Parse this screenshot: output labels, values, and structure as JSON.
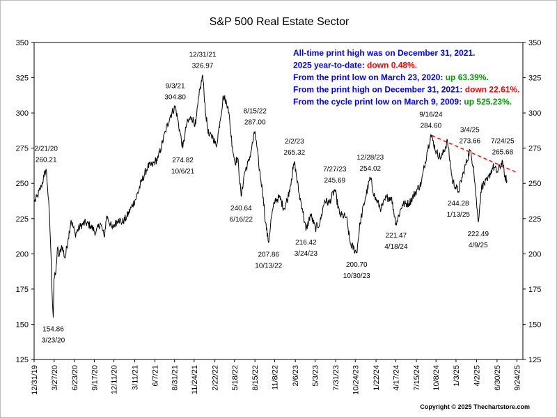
{
  "chart_data": {
    "type": "line",
    "title": "S&P 500 Real Estate Sector",
    "xlabel": "",
    "ylabel": "",
    "ylim": [
      125,
      350
    ],
    "xlim": [
      "2019-12-31",
      "2025-10-20"
    ],
    "grid": false,
    "y_ticks": [
      125,
      150,
      175,
      200,
      225,
      250,
      275,
      300,
      325,
      350
    ],
    "x_ticks": [
      {
        "date": "2019-12-31",
        "label": "12/31/19"
      },
      {
        "date": "2020-03-27",
        "label": "3/27/20"
      },
      {
        "date": "2020-06-23",
        "label": "6/23/20"
      },
      {
        "date": "2020-09-17",
        "label": "9/17/20"
      },
      {
        "date": "2020-12-11",
        "label": "12/11/20"
      },
      {
        "date": "2021-03-11",
        "label": "3/11/21"
      },
      {
        "date": "2021-06-07",
        "label": "6/7/21"
      },
      {
        "date": "2021-08-31",
        "label": "8/31/21"
      },
      {
        "date": "2021-11-24",
        "label": "11/24/21"
      },
      {
        "date": "2022-02-22",
        "label": "2/22/22"
      },
      {
        "date": "2022-05-18",
        "label": "5/18/22"
      },
      {
        "date": "2022-08-15",
        "label": "8/15/22"
      },
      {
        "date": "2022-11-08",
        "label": "11/8/22"
      },
      {
        "date": "2023-02-06",
        "label": "2/6/23"
      },
      {
        "date": "2023-05-03",
        "label": "5/3/23"
      },
      {
        "date": "2023-07-31",
        "label": "7/31/23"
      },
      {
        "date": "2023-10-24",
        "label": "10/24/23"
      },
      {
        "date": "2024-01-22",
        "label": "1/22/24"
      },
      {
        "date": "2024-04-17",
        "label": "4/17/24"
      },
      {
        "date": "2024-07-15",
        "label": "7/15/24"
      },
      {
        "date": "2024-10-08",
        "label": "10/8/24"
      },
      {
        "date": "2025-01-03",
        "label": "1/3/25"
      },
      {
        "date": "2025-04-02",
        "label": "4/2/25"
      },
      {
        "date": "2025-06-30",
        "label": "6/30/25"
      },
      {
        "date": "2025-09-24",
        "label": "9/24/25"
      }
    ],
    "series": [
      {
        "color": "#000000",
        "points": [
          [
            "2020-01-02",
            237
          ],
          [
            "2020-01-15",
            241
          ],
          [
            "2020-01-31",
            248
          ],
          [
            "2020-02-12",
            255
          ],
          [
            "2020-02-21",
            260.21
          ],
          [
            "2020-02-27",
            248
          ],
          [
            "2020-03-05",
            232
          ],
          [
            "2020-03-12",
            205
          ],
          [
            "2020-03-18",
            172
          ],
          [
            "2020-03-23",
            154.86
          ],
          [
            "2020-03-26",
            182
          ],
          [
            "2020-04-03",
            186
          ],
          [
            "2020-04-10",
            204
          ],
          [
            "2020-04-17",
            198
          ],
          [
            "2020-04-29",
            206
          ],
          [
            "2020-05-13",
            197
          ],
          [
            "2020-05-27",
            211
          ],
          [
            "2020-06-08",
            224
          ],
          [
            "2020-06-26",
            214
          ],
          [
            "2020-07-20",
            220
          ],
          [
            "2020-08-10",
            222
          ],
          [
            "2020-08-31",
            220
          ],
          [
            "2020-09-24",
            215
          ],
          [
            "2020-10-13",
            222
          ],
          [
            "2020-10-30",
            212
          ],
          [
            "2020-11-10",
            227
          ],
          [
            "2020-12-04",
            218
          ],
          [
            "2020-12-31",
            225
          ],
          [
            "2021-01-15",
            222
          ],
          [
            "2021-02-04",
            226
          ],
          [
            "2021-02-25",
            233
          ],
          [
            "2021-03-18",
            240
          ],
          [
            "2021-04-09",
            251
          ],
          [
            "2021-05-07",
            262
          ],
          [
            "2021-05-26",
            263
          ],
          [
            "2021-06-21",
            268
          ],
          [
            "2021-07-23",
            287
          ],
          [
            "2021-08-13",
            298
          ],
          [
            "2021-09-03",
            304.8
          ],
          [
            "2021-09-22",
            288
          ],
          [
            "2021-10-06",
            274.82
          ],
          [
            "2021-10-22",
            292
          ],
          [
            "2021-11-12",
            297
          ],
          [
            "2021-12-01",
            292
          ],
          [
            "2021-12-15",
            312
          ],
          [
            "2021-12-31",
            326.97
          ],
          [
            "2022-01-14",
            298
          ],
          [
            "2022-01-27",
            284
          ],
          [
            "2022-02-14",
            283
          ],
          [
            "2022-02-28",
            276
          ],
          [
            "2022-03-16",
            294
          ],
          [
            "2022-03-31",
            312
          ],
          [
            "2022-04-20",
            305
          ],
          [
            "2022-05-09",
            276
          ],
          [
            "2022-05-20",
            265
          ],
          [
            "2022-06-01",
            268
          ],
          [
            "2022-06-16",
            240.64
          ],
          [
            "2022-07-01",
            258
          ],
          [
            "2022-07-20",
            266
          ],
          [
            "2022-08-15",
            287
          ],
          [
            "2022-08-31",
            264
          ],
          [
            "2022-09-20",
            240
          ],
          [
            "2022-09-30",
            222
          ],
          [
            "2022-10-13",
            207.86
          ],
          [
            "2022-10-25",
            226
          ],
          [
            "2022-11-10",
            238
          ],
          [
            "2022-11-30",
            240
          ],
          [
            "2022-12-19",
            232
          ],
          [
            "2023-01-05",
            240
          ],
          [
            "2023-01-20",
            253
          ],
          [
            "2023-02-02",
            265.32
          ],
          [
            "2023-02-22",
            243
          ],
          [
            "2023-03-09",
            232
          ],
          [
            "2023-03-24",
            216.42
          ],
          [
            "2023-04-13",
            228
          ],
          [
            "2023-05-04",
            218
          ],
          [
            "2023-05-24",
            222
          ],
          [
            "2023-06-13",
            238
          ],
          [
            "2023-07-03",
            236
          ],
          [
            "2023-07-27",
            245.69
          ],
          [
            "2023-08-17",
            228
          ],
          [
            "2023-09-15",
            226
          ],
          [
            "2023-10-03",
            207
          ],
          [
            "2023-10-30",
            200.7
          ],
          [
            "2023-11-14",
            222
          ],
          [
            "2023-12-07",
            240
          ],
          [
            "2023-12-28",
            254.02
          ],
          [
            "2024-01-17",
            240
          ],
          [
            "2024-02-13",
            232
          ],
          [
            "2024-03-07",
            240
          ],
          [
            "2024-03-28",
            240
          ],
          [
            "2024-04-18",
            221.47
          ],
          [
            "2024-05-15",
            235
          ],
          [
            "2024-06-14",
            236
          ],
          [
            "2024-07-16",
            245
          ],
          [
            "2024-08-05",
            250
          ],
          [
            "2024-08-30",
            272
          ],
          [
            "2024-09-16",
            284.6
          ],
          [
            "2024-10-10",
            272
          ],
          [
            "2024-10-31",
            268
          ],
          [
            "2024-11-27",
            280
          ],
          [
            "2024-12-18",
            252
          ],
          [
            "2025-01-13",
            244.28
          ],
          [
            "2025-02-05",
            258
          ],
          [
            "2025-03-04",
            273.66
          ],
          [
            "2025-03-20",
            262
          ],
          [
            "2025-04-09",
            222.49
          ],
          [
            "2025-04-24",
            248
          ],
          [
            "2025-05-20",
            252
          ],
          [
            "2025-06-12",
            262
          ],
          [
            "2025-07-01",
            258
          ],
          [
            "2025-07-24",
            265.68
          ],
          [
            "2025-08-01",
            255
          ],
          [
            "2025-08-12",
            252
          ]
        ]
      }
    ],
    "trendline": {
      "color": "#ff0000",
      "style": "dashed",
      "points": [
        [
          "2024-09-20",
          284
        ],
        [
          "2025-09-20",
          258
        ]
      ]
    },
    "annotations": [
      {
        "date": "2020-02-21",
        "value": 260.21,
        "date_label": "2/21/20",
        "value_label": "260.21",
        "position": "above"
      },
      {
        "date": "2020-03-23",
        "value": 154.86,
        "date_label": "3/23/20",
        "value_label": "154.86",
        "position": "below"
      },
      {
        "date": "2021-09-03",
        "value": 304.8,
        "date_label": "9/3/21",
        "value_label": "304.80",
        "position": "above"
      },
      {
        "date": "2021-10-06",
        "value": 274.82,
        "date_label": "10/6/21",
        "value_label": "274.82",
        "position": "below"
      },
      {
        "date": "2021-12-31",
        "value": 326.97,
        "date_label": "12/31/21",
        "value_label": "326.97",
        "position": "above"
      },
      {
        "date": "2022-06-16",
        "value": 240.64,
        "date_label": "6/16/22",
        "value_label": "240.64",
        "position": "below"
      },
      {
        "date": "2022-08-15",
        "value": 287.0,
        "date_label": "8/15/22",
        "value_label": "287.00",
        "position": "above"
      },
      {
        "date": "2022-10-13",
        "value": 207.86,
        "date_label": "10/13/22",
        "value_label": "207.86",
        "position": "below"
      },
      {
        "date": "2023-02-02",
        "value": 265.32,
        "date_label": "2/2/23",
        "value_label": "265.32",
        "position": "above"
      },
      {
        "date": "2023-03-24",
        "value": 216.42,
        "date_label": "3/24/23",
        "value_label": "216.42",
        "position": "below"
      },
      {
        "date": "2023-07-27",
        "value": 245.69,
        "date_label": "7/27/23",
        "value_label": "245.69",
        "position": "above"
      },
      {
        "date": "2023-10-30",
        "value": 200.7,
        "date_label": "10/30/23",
        "value_label": "200.70",
        "position": "below"
      },
      {
        "date": "2023-12-28",
        "value": 254.02,
        "date_label": "12/28/23",
        "value_label": "254.02",
        "position": "above"
      },
      {
        "date": "2024-04-18",
        "value": 221.47,
        "date_label": "4/18/24",
        "value_label": "221.47",
        "position": "below"
      },
      {
        "date": "2024-09-16",
        "value": 284.6,
        "date_label": "9/16/24",
        "value_label": "284.60",
        "position": "above"
      },
      {
        "date": "2025-01-13",
        "value": 244.28,
        "date_label": "1/13/25",
        "value_label": "244.28",
        "position": "below"
      },
      {
        "date": "2025-03-04",
        "value": 273.66,
        "date_label": "3/4/25",
        "value_label": "273.66",
        "position": "above"
      },
      {
        "date": "2025-04-09",
        "value": 222.49,
        "date_label": "4/9/25",
        "value_label": "222.49",
        "position": "below"
      },
      {
        "date": "2025-07-24",
        "value": 265.68,
        "date_label": "7/24/25",
        "value_label": "265.68",
        "position": "above"
      }
    ],
    "notes": [
      [
        {
          "text": "All-time print high was on December 31, 2021.",
          "color": "#0000ff"
        }
      ],
      [
        {
          "text": "2025 year-to-date: ",
          "color": "#0000ff"
        },
        {
          "text": "down 0.48%.",
          "color": "#ff0000"
        }
      ],
      [
        {
          "text": "From the print low on March 23, 2020:  ",
          "color": "#0000ff"
        },
        {
          "text": "up 63.39%.",
          "color": "#009900"
        }
      ],
      [
        {
          "text": "From the print high on December 31, 2021:  ",
          "color": "#0000ff"
        },
        {
          "text": "down 22.61%.",
          "color": "#ff0000"
        }
      ],
      [
        {
          "text": "From the cycle print low on March 9, 2009:  ",
          "color": "#0000ff"
        },
        {
          "text": "up 525.23%.",
          "color": "#009900"
        }
      ]
    ],
    "copyright": "Copyright © 2025 Thechartstore.com"
  }
}
